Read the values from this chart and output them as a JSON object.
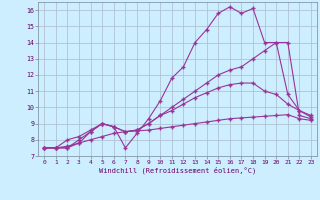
{
  "xlabel": "Windchill (Refroidissement éolien,°C)",
  "background_color": "#cceeff",
  "grid_color": "#aabbcc",
  "line_color": "#993399",
  "xlim": [
    -0.5,
    23.5
  ],
  "ylim": [
    7,
    16.5
  ],
  "xticks": [
    0,
    1,
    2,
    3,
    4,
    5,
    6,
    7,
    8,
    9,
    10,
    11,
    12,
    13,
    14,
    15,
    16,
    17,
    18,
    19,
    20,
    21,
    22,
    23
  ],
  "yticks": [
    7,
    8,
    9,
    10,
    11,
    12,
    13,
    14,
    15,
    16
  ],
  "line1_x": [
    0,
    1,
    2,
    3,
    4,
    5,
    6,
    7,
    8,
    9,
    10,
    11,
    12,
    13,
    14,
    15,
    16,
    17,
    18,
    19,
    20,
    21,
    22,
    23
  ],
  "line1_y": [
    7.5,
    7.5,
    7.5,
    7.8,
    8.5,
    9.0,
    8.8,
    7.5,
    8.4,
    9.3,
    10.4,
    11.8,
    12.5,
    14.0,
    14.8,
    15.8,
    16.2,
    15.8,
    16.1,
    14.0,
    14.0,
    10.8,
    9.8,
    9.4
  ],
  "line2_x": [
    0,
    1,
    2,
    3,
    4,
    5,
    6,
    7,
    8,
    9,
    10,
    11,
    12,
    13,
    14,
    15,
    16,
    17,
    18,
    19,
    20,
    21,
    22,
    23
  ],
  "line2_y": [
    7.5,
    7.5,
    7.5,
    8.0,
    8.5,
    9.0,
    8.8,
    8.5,
    8.6,
    9.0,
    9.5,
    10.0,
    10.5,
    11.0,
    11.5,
    12.0,
    12.3,
    12.5,
    13.0,
    13.5,
    14.0,
    14.0,
    9.5,
    9.3
  ],
  "line3_x": [
    0,
    1,
    2,
    3,
    4,
    5,
    6,
    7,
    8,
    9,
    10,
    11,
    12,
    13,
    14,
    15,
    16,
    17,
    18,
    19,
    20,
    21,
    22,
    23
  ],
  "line3_y": [
    7.5,
    7.5,
    8.0,
    8.2,
    8.6,
    9.0,
    8.8,
    8.5,
    8.6,
    9.0,
    9.5,
    9.8,
    10.2,
    10.6,
    10.9,
    11.2,
    11.4,
    11.5,
    11.5,
    11.0,
    10.8,
    10.2,
    9.8,
    9.5
  ],
  "line4_x": [
    0,
    1,
    2,
    3,
    4,
    5,
    6,
    7,
    8,
    9,
    10,
    11,
    12,
    13,
    14,
    15,
    16,
    17,
    18,
    19,
    20,
    21,
    22,
    23
  ],
  "line4_y": [
    7.5,
    7.5,
    7.6,
    7.8,
    8.0,
    8.2,
    8.4,
    8.5,
    8.55,
    8.6,
    8.7,
    8.8,
    8.9,
    9.0,
    9.1,
    9.2,
    9.3,
    9.35,
    9.4,
    9.45,
    9.5,
    9.55,
    9.3,
    9.2
  ]
}
